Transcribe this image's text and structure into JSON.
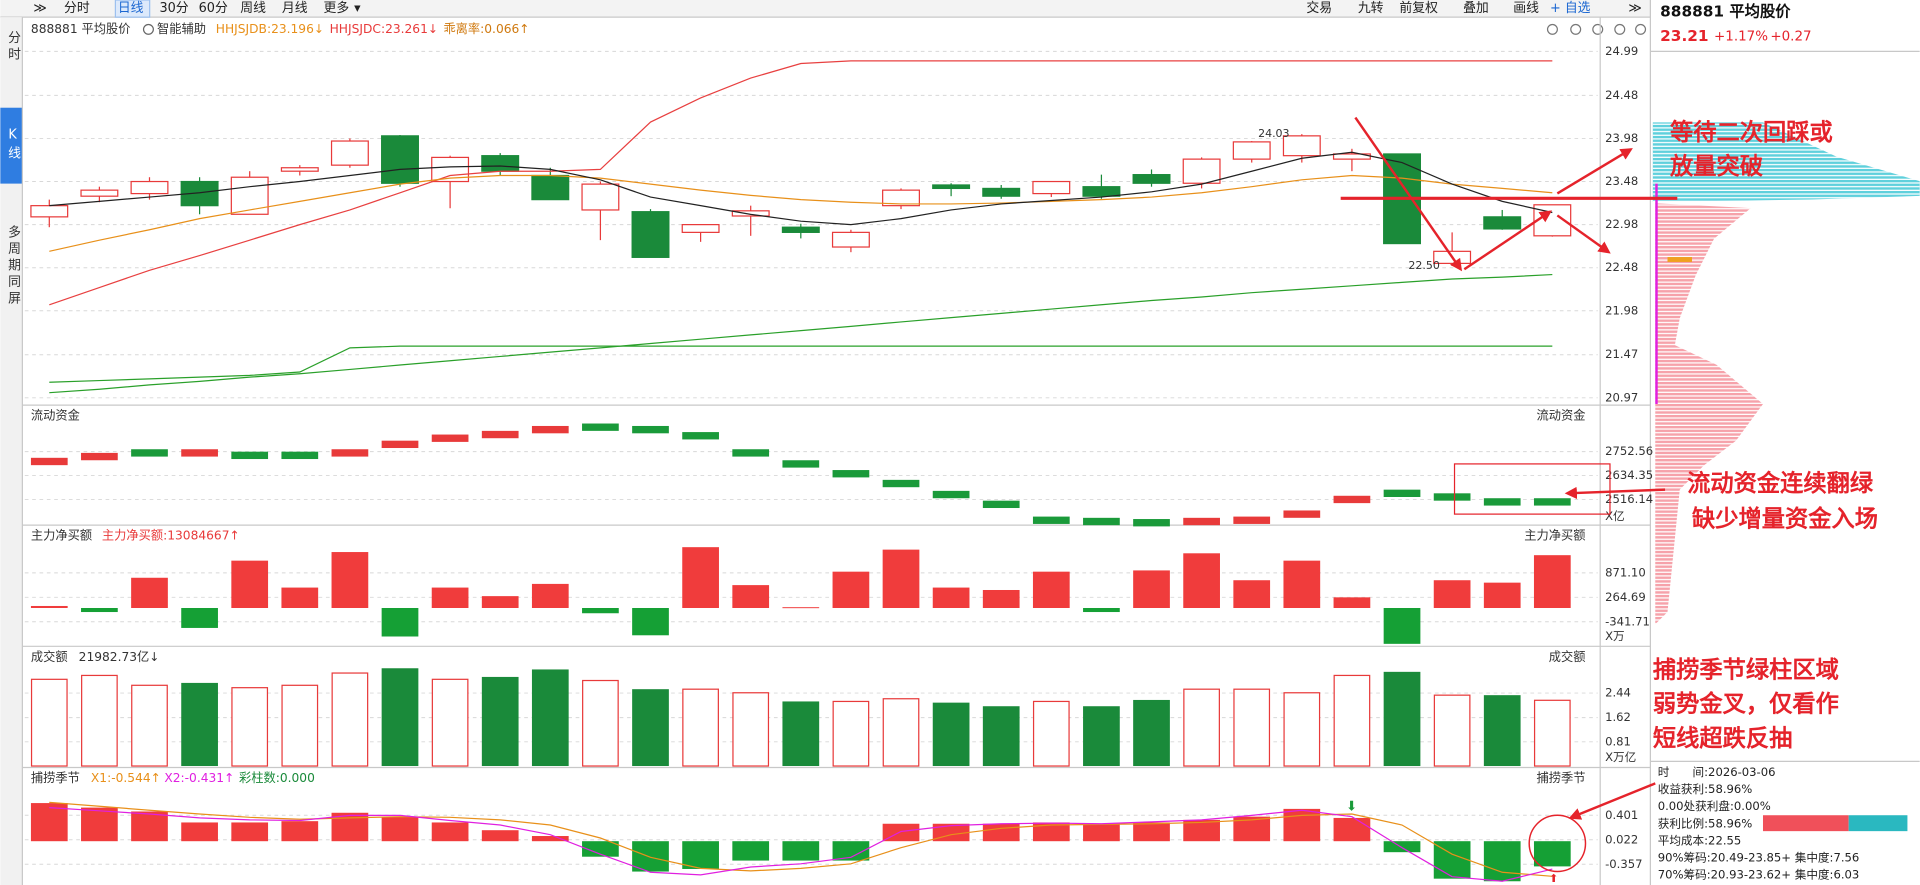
{
  "toolbar": {
    "left": [
      "分时",
      "日线",
      "30分",
      "60分",
      "周线",
      "月线",
      "更多"
    ],
    "right": [
      "交易",
      "九转",
      "前复权",
      "叠加",
      "画线",
      "+ 自选"
    ]
  },
  "sidebar": [
    "分时",
    "K线",
    "多周期同屏"
  ],
  "header": {
    "stock": "888881 平均股价",
    "assist": "智能辅助",
    "items": [
      "HHJSJDB:23.196↓",
      "HHJSJDC:23.261↓",
      "乖离率:0.066↑"
    ]
  },
  "quote": {
    "name": "888881 平均股价",
    "price": "23.21",
    "change_pct": "+1.17%",
    "change": "+0.27"
  },
  "chip_info": [
    "时　　间:2026-03-06",
    "收益获利:58.96%",
    "0.00处获利盘:0.00%",
    "获利比例:58.96%",
    "平均成本:22.55",
    "90%筹码:20.49-23.85+  集中度:7.56",
    "70%筹码:20.93-23.62+  集中度:6.03"
  ],
  "annotations": [
    "等待二次回踩或",
    "放量突破",
    "流动资金连续翻绿",
    "缺少增量资金入场",
    "捕捞季节绿柱区域",
    "弱势金叉，仅看作",
    "短线超跌反抽"
  ],
  "chart_data": [
    {
      "type": "candlestick",
      "up_color": "#e83a3a",
      "down_color": "#1a8a3a",
      "open": [
        23.07,
        23.31,
        23.34,
        23.48,
        23.1,
        23.6,
        23.67,
        24.01,
        23.48,
        23.78,
        23.55,
        23.15,
        23.13,
        22.89,
        23.08,
        22.95,
        22.72,
        23.2,
        23.44,
        23.4,
        23.34,
        23.42,
        23.56,
        23.46,
        23.74,
        23.78,
        23.74,
        23.8,
        22.53,
        23.07,
        22.85
      ],
      "high": [
        23.27,
        23.42,
        23.53,
        23.53,
        23.6,
        23.67,
        23.98,
        24.02,
        23.78,
        23.81,
        23.64,
        23.48,
        23.16,
        22.98,
        23.2,
        22.99,
        22.92,
        23.4,
        23.46,
        23.44,
        23.48,
        23.56,
        23.62,
        23.76,
        23.95,
        24.03,
        23.86,
        23.8,
        22.89,
        23.15,
        23.2
      ],
      "low": [
        22.95,
        23.24,
        23.27,
        23.1,
        23.1,
        23.55,
        23.64,
        23.42,
        23.17,
        23.55,
        23.27,
        22.8,
        22.6,
        22.78,
        22.85,
        22.82,
        22.66,
        23.16,
        23.31,
        23.28,
        23.3,
        23.28,
        23.42,
        23.4,
        23.7,
        23.7,
        23.6,
        22.76,
        22.5,
        22.92,
        22.84
      ],
      "close": [
        23.2,
        23.38,
        23.48,
        23.2,
        23.53,
        23.64,
        23.95,
        23.46,
        23.76,
        23.6,
        23.27,
        23.45,
        22.6,
        22.98,
        23.14,
        22.89,
        22.89,
        23.38,
        23.4,
        23.31,
        23.48,
        23.31,
        23.46,
        23.74,
        23.94,
        24.01,
        23.8,
        22.76,
        22.67,
        22.93,
        23.21
      ],
      "max_label": 24.03,
      "min_label": {
        "value": 22.5,
        "label": "22.50"
      },
      "lines": [
        {
          "color": "#e84040",
          "values": [
            22.05,
            22.25,
            22.45,
            22.62,
            22.8,
            22.98,
            23.15,
            23.35,
            23.55,
            23.6,
            23.6,
            23.62,
            24.17,
            24.45,
            24.68,
            24.85,
            24.88,
            24.88,
            24.88,
            24.88,
            24.88,
            24.88,
            24.88,
            24.88,
            24.88,
            24.88,
            24.88,
            24.88,
            24.88,
            24.88,
            24.88
          ]
        },
        {
          "color": "#e8901a",
          "values": [
            22.67,
            22.8,
            22.92,
            23.05,
            23.15,
            23.25,
            23.35,
            23.45,
            23.52,
            23.55,
            23.55,
            23.52,
            23.45,
            23.38,
            23.32,
            23.27,
            23.24,
            23.22,
            23.22,
            23.23,
            23.25,
            23.27,
            23.3,
            23.35,
            23.42,
            23.5,
            23.55,
            23.52,
            23.45,
            23.4,
            23.35
          ]
        },
        {
          "color": "#222222",
          "values": [
            23.2,
            23.25,
            23.3,
            23.35,
            23.42,
            23.48,
            23.55,
            23.62,
            23.65,
            23.66,
            23.62,
            23.5,
            23.3,
            23.2,
            23.1,
            23.02,
            22.98,
            23.05,
            23.15,
            23.22,
            23.26,
            23.3,
            23.36,
            23.45,
            23.6,
            23.75,
            23.82,
            23.7,
            23.45,
            23.25,
            23.12
          ]
        },
        {
          "color": "#2aa02a",
          "values": [
            21.03,
            21.07,
            21.12,
            21.16,
            21.21,
            21.25,
            21.3,
            21.35,
            21.4,
            21.45,
            21.5,
            21.55,
            21.6,
            21.65,
            21.7,
            21.75,
            21.8,
            21.85,
            21.9,
            21.95,
            22.0,
            22.05,
            22.1,
            22.14,
            22.19,
            22.23,
            22.27,
            22.31,
            22.35,
            22.37,
            22.4
          ]
        },
        {
          "color": "#2aa02a",
          "values": [
            21.15,
            21.17,
            21.19,
            21.21,
            21.23,
            21.27,
            21.55,
            21.57,
            21.57,
            21.57,
            21.57,
            21.57,
            21.57,
            21.57,
            21.57,
            21.57,
            21.57,
            21.57,
            21.57,
            21.57,
            21.57,
            21.57,
            21.57,
            21.57,
            21.57,
            21.57,
            21.57,
            21.57,
            21.57,
            21.57,
            21.57
          ]
        }
      ],
      "ylim": [
        20.97,
        24.99
      ],
      "yticks": [
        24.99,
        24.48,
        23.98,
        23.48,
        22.98,
        22.48,
        21.98,
        21.47,
        20.97
      ]
    },
    {
      "type": "level",
      "title": "流动资金",
      "unit": "X亿",
      "values": [
        2704.0,
        2728.3,
        2746.4,
        2746.4,
        2734.3,
        2734.3,
        2746.4,
        2788.8,
        2819.1,
        2837.3,
        2861.6,
        2873.7,
        2861.6,
        2831.3,
        2746.4,
        2691.9,
        2643.4,
        2594.9,
        2540.4,
        2491.9,
        2413.1,
        2407.0,
        2401.0,
        2407.0,
        2413.1,
        2443.4,
        2516.1,
        2546.4,
        2528.3,
        2504.0,
        2504.0
      ],
      "colors": [
        "#e83a3a",
        "#e83a3a",
        "#1a9a3a",
        "#e83a3a",
        "#1a9a3a",
        "#1a9a3a",
        "#e83a3a",
        "#e83a3a",
        "#e83a3a",
        "#e83a3a",
        "#e83a3a",
        "#1a9a3a",
        "#1a9a3a",
        "#1a9a3a",
        "#1a9a3a",
        "#1a9a3a",
        "#1a9a3a",
        "#1a9a3a",
        "#1a9a3a",
        "#1a9a3a",
        "#1a9a3a",
        "#1a9a3a",
        "#1a9a3a",
        "#e83a3a",
        "#e83a3a",
        "#e83a3a",
        "#e83a3a",
        "#1a9a3a",
        "#1a9a3a",
        "#1a9a3a",
        "#1a9a3a"
      ],
      "ylim": [
        2383,
        2910
      ],
      "yticks": [
        2752.56,
        2634.35,
        2516.14
      ]
    },
    {
      "type": "bar",
      "title": "主力净买额",
      "title_value": "主力净买额:13084667↑",
      "unit": "X万",
      "up_color": "#f03c3c",
      "down_color": "#15a035",
      "hollow_up": false,
      "values": [
        50,
        -100,
        749,
        -494,
        1173,
        506,
        1386,
        -706,
        506,
        294,
        597,
        -130,
        -676,
        1507,
        567,
        20,
        900,
        1446,
        506,
        446,
        900,
        -100,
        931,
        1355,
        688,
        1173,
        264,
        -888,
        688,
        628,
        1308.4667
      ],
      "ylim": [
        -949,
        1962
      ],
      "yticks": [
        {
          "value": 871.1,
          "label": "871.10"
        },
        264.69,
        -341.71
      ]
    },
    {
      "type": "bar",
      "title": "成交额",
      "title_value": "21982.73亿↓",
      "unit": "X万亿",
      "up_color": "#e83a3a",
      "down_color": "#1a8a3a",
      "hollow_up": true,
      "values": [
        2.9,
        3.03,
        2.7,
        2.78,
        2.62,
        2.7,
        3.11,
        3.27,
        2.9,
        2.98,
        3.23,
        2.86,
        2.57,
        2.57,
        2.45,
        2.16,
        2.16,
        2.25,
        2.12,
        2.0,
        2.16,
        2.0,
        2.21,
        2.57,
        2.57,
        2.45,
        3.03,
        3.15,
        2.37,
        2.37,
        2.198273
      ],
      "colors": [
        "#e83a3a",
        "#e83a3a",
        "#e83a3a",
        "#1a8a3a",
        "#e83a3a",
        "#e83a3a",
        "#e83a3a",
        "#1a8a3a",
        "#e83a3a",
        "#1a8a3a",
        "#1a8a3a",
        "#e83a3a",
        "#1a8a3a",
        "#e83a3a",
        "#e83a3a",
        "#1a8a3a",
        "#e83a3a",
        "#e83a3a",
        "#1a8a3a",
        "#1a8a3a",
        "#e83a3a",
        "#1a8a3a",
        "#1a8a3a",
        "#e83a3a",
        "#e83a3a",
        "#e83a3a",
        "#e83a3a",
        "#1a8a3a",
        "#e83a3a",
        "#1a8a3a",
        "#e83a3a"
      ],
      "ylim": [
        0,
        3.39
      ],
      "yticks": [
        2.44,
        1.62,
        0.81
      ]
    },
    {
      "type": "bar",
      "title": "捕捞季节",
      "title_items": [
        "X1:-0.544↑",
        "X2:-0.431↑",
        "彩柱数:0.000"
      ],
      "up_color": "#f03c3c",
      "down_color": "#15a035",
      "hollow_up": false,
      "values": [
        0.59,
        0.52,
        0.46,
        0.29,
        0.29,
        0.31,
        0.44,
        0.38,
        0.29,
        0.17,
        0.08,
        -0.24,
        -0.47,
        -0.43,
        -0.3,
        -0.3,
        -0.3,
        0.27,
        0.27,
        0.27,
        0.29,
        0.27,
        0.29,
        0.33,
        0.38,
        0.5,
        0.36,
        -0.17,
        -0.58,
        -0.62,
        -0.39
      ],
      "lines": [
        {
          "color": "#e8901a",
          "values": [
            0.6,
            0.54,
            0.48,
            0.42,
            0.37,
            0.34,
            0.36,
            0.38,
            0.37,
            0.33,
            0.25,
            0.05,
            -0.25,
            -0.42,
            -0.46,
            -0.42,
            -0.35,
            -0.1,
            0.1,
            0.2,
            0.25,
            0.26,
            0.27,
            0.29,
            0.33,
            0.4,
            0.42,
            0.25,
            -0.2,
            -0.48,
            -0.544
          ]
        },
        {
          "color": "#e020e0",
          "values": [
            0.52,
            0.47,
            0.42,
            0.36,
            0.33,
            0.32,
            0.4,
            0.4,
            0.32,
            0.25,
            0.1,
            -0.2,
            -0.48,
            -0.52,
            -0.4,
            -0.35,
            -0.25,
            0.15,
            0.24,
            0.27,
            0.28,
            0.27,
            0.3,
            0.33,
            0.4,
            0.48,
            0.38,
            -0.1,
            -0.55,
            -0.62,
            -0.431
          ]
        }
      ],
      "ylim": [
        -0.659,
        0.705
      ],
      "yticks": [
        0.401,
        0.022,
        -0.357
      ]
    }
  ]
}
